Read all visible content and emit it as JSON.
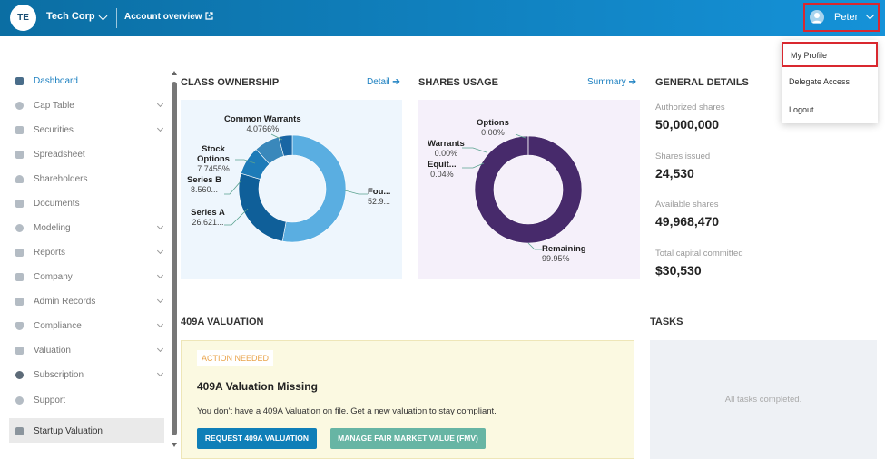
{
  "header": {
    "company_initials": "TE",
    "company_name": "Tech Corp",
    "account_link": "Account overview",
    "user_name": "Peter"
  },
  "user_menu": {
    "items": [
      "My Profile",
      "Delegate Access",
      "Logout"
    ]
  },
  "sidebar": {
    "items": [
      {
        "label": "Dashboard",
        "icon": "dashboard-icon"
      },
      {
        "label": "Cap Table",
        "icon": "pie-icon"
      },
      {
        "label": "Securities",
        "icon": "document-icon"
      },
      {
        "label": "Spreadsheet",
        "icon": "table-icon"
      },
      {
        "label": "Shareholders",
        "icon": "person-icon"
      },
      {
        "label": "Documents",
        "icon": "folder-icon"
      },
      {
        "label": "Modeling",
        "icon": "bulb-icon"
      },
      {
        "label": "Reports",
        "icon": "chart-icon"
      },
      {
        "label": "Company",
        "icon": "building-icon"
      },
      {
        "label": "Admin Records",
        "icon": "records-icon"
      },
      {
        "label": "Compliance",
        "icon": "shield-icon"
      },
      {
        "label": "Valuation",
        "icon": "valuation-icon"
      },
      {
        "label": "Subscription",
        "icon": "dollar-icon"
      },
      {
        "label": "Support",
        "icon": "support-icon"
      },
      {
        "label": "Startup Valuation",
        "icon": "startup-icon"
      }
    ]
  },
  "class_ownership": {
    "title": "CLASS OWNERSHIP",
    "link": "Detail",
    "segments": [
      {
        "name": "Fou...",
        "pct_label": "52.9...",
        "pct": 52.9,
        "color": "#5aaee1"
      },
      {
        "name": "Series A",
        "pct_label": "26.621...",
        "pct": 26.621,
        "color": "#0f5f99"
      },
      {
        "name": "Series B",
        "pct_label": "8.560...",
        "pct": 8.56,
        "color": "#1d7bb8"
      },
      {
        "name": "Stock Options",
        "pct_label": "7.7455%",
        "pct": 7.7455,
        "color": "#3a88bb"
      },
      {
        "name": "Common Warrants",
        "pct_label": "4.0766%",
        "pct": 4.0766,
        "color": "#1966a4"
      }
    ]
  },
  "shares_usage": {
    "title": "SHARES USAGE",
    "link": "Summary",
    "segments": [
      {
        "name": "Remaining",
        "pct_label": "99.95%",
        "pct": 99.95,
        "color": "#472a6b"
      },
      {
        "name": "Options",
        "pct_label": "0.00%",
        "pct": 0.0,
        "color": "#6b4c94"
      },
      {
        "name": "Warrants",
        "pct_label": "0.00%",
        "pct": 0.0,
        "color": "#6b4c94"
      },
      {
        "name": "Equit...",
        "pct_label": "0.04%",
        "pct": 0.04,
        "color": "#8a6bb3"
      }
    ]
  },
  "general_details": {
    "title": "GENERAL DETAILS",
    "rows": [
      {
        "label": "Authorized shares",
        "value": "50,000,000"
      },
      {
        "label": "Shares issued",
        "value": "24,530"
      },
      {
        "label": "Available shares",
        "value": "49,968,470"
      },
      {
        "label": "Total capital committed",
        "value": "$30,530"
      }
    ]
  },
  "valuation": {
    "title": "409A VALUATION",
    "badge": "ACTION NEEDED",
    "card_title": "409A Valuation Missing",
    "description": "You don't have a 409A Valuation on file. Get a new valuation to stay compliant.",
    "request_button": "REQUEST 409A VALUATION",
    "fmv_button": "MANAGE FAIR MARKET VALUE (FMV)"
  },
  "tasks": {
    "title": "TASKS",
    "empty_text": "All tasks completed."
  }
}
